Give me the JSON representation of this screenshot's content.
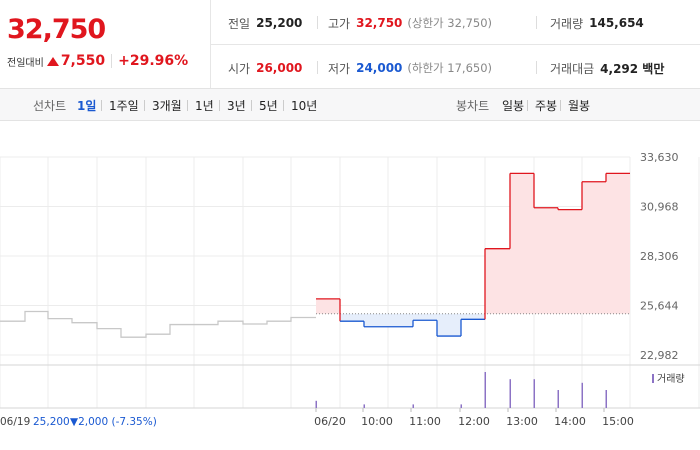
{
  "summary": {
    "price": "32,750",
    "change_label": "전일대비",
    "change_value": "7,550",
    "change_percent": "+29.96%"
  },
  "stats": {
    "prev_close_label": "전일",
    "prev_close": "25,200",
    "high_label": "고가",
    "high": "32,750",
    "upper_limit": "(상한가 32,750)",
    "volume_label": "거래량",
    "volume": "145,654",
    "open_label": "시가",
    "open": "26,000",
    "low_label": "저가",
    "low": "24,000",
    "lower_limit": "(하한가 17,650)",
    "amount_label": "거래대금",
    "amount": "4,292 백만"
  },
  "tabs": {
    "line_title": "선차트",
    "line_items": [
      "1일",
      "1주일",
      "3개월",
      "1년",
      "3년",
      "5년",
      "10년"
    ],
    "active_index": 0,
    "candle_title": "봉차트",
    "candle_items": [
      "일봉",
      "주봉",
      "월봉"
    ]
  },
  "colors": {
    "up": "#e0161e",
    "down": "#1a59d1",
    "prev": "#c8c8c8",
    "up_fill": "#fde3e4",
    "down_fill": "#e6eefb",
    "volume": "#8c73c5"
  },
  "chart_data": {
    "type": "line",
    "y_ticks": [
      "33,630",
      "30,968",
      "28,306",
      "25,644",
      "22,982"
    ],
    "ylim": [
      22982,
      33630
    ],
    "baseline": 25200,
    "x_ticks": [
      "06/20",
      "10:00",
      "11:00",
      "12:00",
      "13:00",
      "14:00",
      "15:00"
    ],
    "prev_day_label": "06/19",
    "prev_day_summary": "25,200",
    "prev_day_change": "▼2,000 (-7.35%)",
    "volume_legend": "거래량",
    "prev_day_series": [
      {
        "x": 0,
        "y": 24800
      },
      {
        "x": 25,
        "y": 24800
      },
      {
        "x": 25,
        "y": 25320
      },
      {
        "x": 48,
        "y": 25320
      },
      {
        "x": 48,
        "y": 24940
      },
      {
        "x": 72,
        "y": 24940
      },
      {
        "x": 72,
        "y": 24720
      },
      {
        "x": 97,
        "y": 24720
      },
      {
        "x": 97,
        "y": 24400
      },
      {
        "x": 121,
        "y": 24400
      },
      {
        "x": 121,
        "y": 23940
      },
      {
        "x": 146,
        "y": 23940
      },
      {
        "x": 146,
        "y": 24100
      },
      {
        "x": 170,
        "y": 24100
      },
      {
        "x": 170,
        "y": 24620
      },
      {
        "x": 194,
        "y": 24620
      },
      {
        "x": 194,
        "y": 24620
      },
      {
        "x": 218,
        "y": 24620
      },
      {
        "x": 218,
        "y": 24800
      },
      {
        "x": 243,
        "y": 24800
      },
      {
        "x": 243,
        "y": 24650
      },
      {
        "x": 267,
        "y": 24650
      },
      {
        "x": 267,
        "y": 24800
      },
      {
        "x": 291,
        "y": 24800
      },
      {
        "x": 291,
        "y": 25000
      },
      {
        "x": 316,
        "y": 25000
      }
    ],
    "today_series": [
      {
        "x": 316,
        "y": 26000
      },
      {
        "x": 340,
        "y": 26000
      },
      {
        "x": 340,
        "y": 24800
      },
      {
        "x": 364,
        "y": 24800
      },
      {
        "x": 364,
        "y": 24500
      },
      {
        "x": 413,
        "y": 24500
      },
      {
        "x": 413,
        "y": 24850
      },
      {
        "x": 437,
        "y": 24850
      },
      {
        "x": 437,
        "y": 24000
      },
      {
        "x": 461,
        "y": 24000
      },
      {
        "x": 461,
        "y": 24900
      },
      {
        "x": 485,
        "y": 24900
      },
      {
        "x": 485,
        "y": 28700
      },
      {
        "x": 510,
        "y": 28700
      },
      {
        "x": 510,
        "y": 32750
      },
      {
        "x": 534,
        "y": 32750
      },
      {
        "x": 534,
        "y": 30900
      },
      {
        "x": 558,
        "y": 30900
      },
      {
        "x": 558,
        "y": 30800
      },
      {
        "x": 582,
        "y": 30800
      },
      {
        "x": 582,
        "y": 32300
      },
      {
        "x": 606,
        "y": 32300
      },
      {
        "x": 606,
        "y": 32750
      },
      {
        "x": 630,
        "y": 32750
      }
    ],
    "volume": [
      {
        "x": 316,
        "v": 2
      },
      {
        "x": 364,
        "v": 1
      },
      {
        "x": 413,
        "v": 1
      },
      {
        "x": 461,
        "v": 1
      },
      {
        "x": 485,
        "v": 10
      },
      {
        "x": 510,
        "v": 8
      },
      {
        "x": 534,
        "v": 8
      },
      {
        "x": 558,
        "v": 5
      },
      {
        "x": 582,
        "v": 7
      },
      {
        "x": 606,
        "v": 5
      }
    ]
  }
}
